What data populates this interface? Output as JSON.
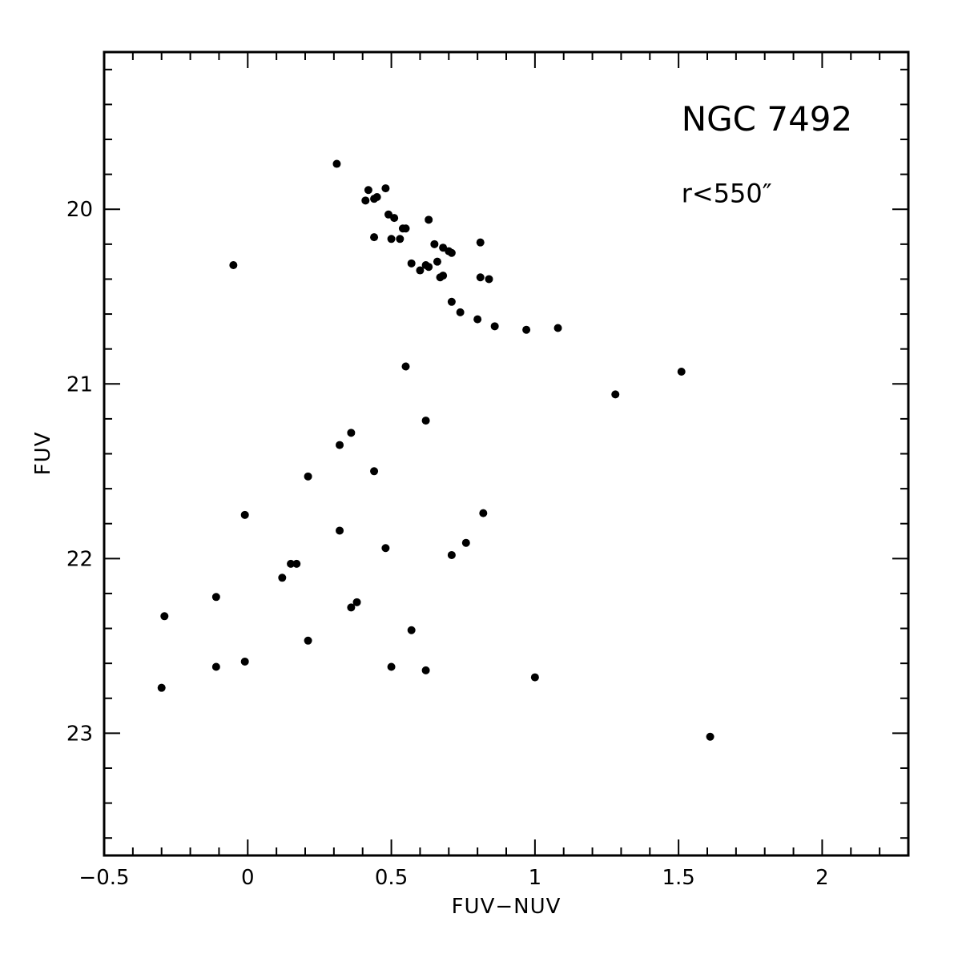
{
  "chart_data": {
    "type": "scatter",
    "title": "",
    "xlabel": "FUV−NUV",
    "ylabel": "FUV",
    "xlim": [
      -0.5,
      2.3
    ],
    "ylim": [
      23.7,
      19.1
    ],
    "y_inverted": true,
    "grid": false,
    "x_ticks": [
      {
        "value": -0.5,
        "label": "−0.5"
      },
      {
        "value": 0,
        "label": "0"
      },
      {
        "value": 0.5,
        "label": "0.5"
      },
      {
        "value": 1,
        "label": "1"
      },
      {
        "value": 1.5,
        "label": "1.5"
      },
      {
        "value": 2,
        "label": "2"
      }
    ],
    "y_ticks": [
      {
        "value": 20,
        "label": "20"
      },
      {
        "value": 21,
        "label": "21"
      },
      {
        "value": 22,
        "label": "22"
      },
      {
        "value": 23,
        "label": "23"
      }
    ],
    "annotations": [
      {
        "text": "NGC 7492",
        "x": 1.51,
        "y": 19.55,
        "size": "large"
      },
      {
        "text": "r<550″",
        "x": 1.51,
        "y": 19.96,
        "size": "medium"
      }
    ],
    "series": [
      {
        "points": [
          {
            "x": 0.31,
            "y": 19.74
          },
          {
            "x": 0.42,
            "y": 19.89
          },
          {
            "x": 0.48,
            "y": 19.88
          },
          {
            "x": 0.41,
            "y": 19.95
          },
          {
            "x": 0.44,
            "y": 19.94
          },
          {
            "x": 0.45,
            "y": 19.93
          },
          {
            "x": 0.49,
            "y": 20.03
          },
          {
            "x": 0.51,
            "y": 20.05
          },
          {
            "x": 0.63,
            "y": 20.06
          },
          {
            "x": 0.54,
            "y": 20.11
          },
          {
            "x": 0.55,
            "y": 20.11
          },
          {
            "x": 0.44,
            "y": 20.16
          },
          {
            "x": 0.5,
            "y": 20.17
          },
          {
            "x": 0.53,
            "y": 20.17
          },
          {
            "x": 0.81,
            "y": 20.19
          },
          {
            "x": 0.65,
            "y": 20.2
          },
          {
            "x": 0.68,
            "y": 20.22
          },
          {
            "x": 0.7,
            "y": 20.24
          },
          {
            "x": 0.71,
            "y": 20.25
          },
          {
            "x": -0.05,
            "y": 20.32
          },
          {
            "x": 0.57,
            "y": 20.31
          },
          {
            "x": 0.62,
            "y": 20.32
          },
          {
            "x": 0.66,
            "y": 20.3
          },
          {
            "x": 0.63,
            "y": 20.33
          },
          {
            "x": 0.6,
            "y": 20.35
          },
          {
            "x": 0.67,
            "y": 20.39
          },
          {
            "x": 0.68,
            "y": 20.38
          },
          {
            "x": 0.81,
            "y": 20.39
          },
          {
            "x": 0.84,
            "y": 20.4
          },
          {
            "x": 0.71,
            "y": 20.53
          },
          {
            "x": 0.74,
            "y": 20.59
          },
          {
            "x": 0.8,
            "y": 20.63
          },
          {
            "x": 0.86,
            "y": 20.67
          },
          {
            "x": 0.97,
            "y": 20.69
          },
          {
            "x": 1.08,
            "y": 20.68
          },
          {
            "x": 0.55,
            "y": 20.9
          },
          {
            "x": 1.51,
            "y": 20.93
          },
          {
            "x": 1.28,
            "y": 21.06
          },
          {
            "x": 0.62,
            "y": 21.21
          },
          {
            "x": 0.36,
            "y": 21.28
          },
          {
            "x": 0.32,
            "y": 21.35
          },
          {
            "x": 0.44,
            "y": 21.5
          },
          {
            "x": 0.21,
            "y": 21.53
          },
          {
            "x": -0.01,
            "y": 21.75
          },
          {
            "x": 0.82,
            "y": 21.74
          },
          {
            "x": 0.32,
            "y": 21.84
          },
          {
            "x": 0.76,
            "y": 21.91
          },
          {
            "x": 0.48,
            "y": 21.94
          },
          {
            "x": 0.71,
            "y": 21.98
          },
          {
            "x": 0.15,
            "y": 22.03
          },
          {
            "x": 0.17,
            "y": 22.03
          },
          {
            "x": 0.12,
            "y": 22.11
          },
          {
            "x": -0.11,
            "y": 22.22
          },
          {
            "x": 0.38,
            "y": 22.25
          },
          {
            "x": 0.36,
            "y": 22.28
          },
          {
            "x": -0.29,
            "y": 22.33
          },
          {
            "x": 0.57,
            "y": 22.41
          },
          {
            "x": 0.21,
            "y": 22.47
          },
          {
            "x": -0.01,
            "y": 22.59
          },
          {
            "x": -0.11,
            "y": 22.62
          },
          {
            "x": 0.5,
            "y": 22.62
          },
          {
            "x": 0.62,
            "y": 22.64
          },
          {
            "x": 1.0,
            "y": 22.68
          },
          {
            "x": -0.3,
            "y": 22.74
          },
          {
            "x": 1.61,
            "y": 23.02
          }
        ]
      }
    ]
  }
}
